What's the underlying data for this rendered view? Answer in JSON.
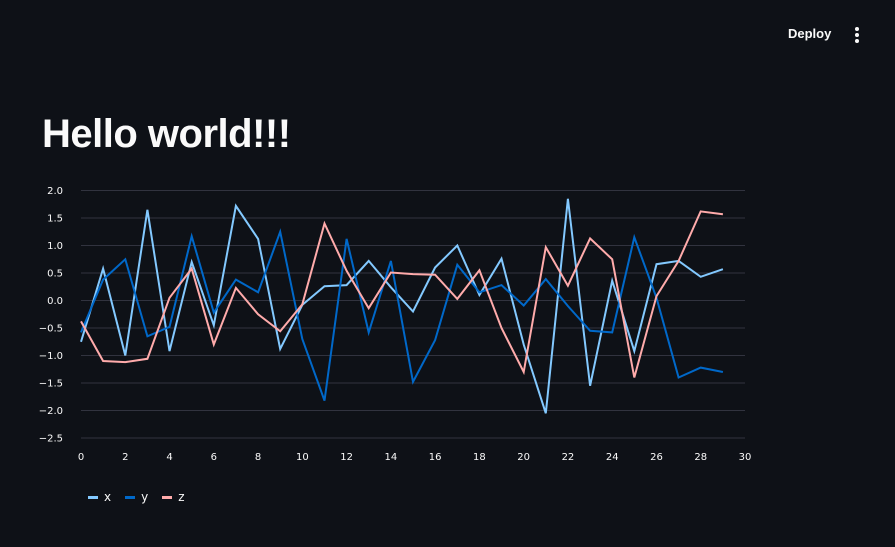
{
  "header": {
    "deploy_label": "Deploy",
    "menu_icon": "kebab-menu-icon"
  },
  "main": {
    "title": "Hello world!!!"
  },
  "colors": {
    "background": "#0e1117",
    "text": "#fafafa",
    "gridline": "#31333f",
    "series_x": "#83c9ff",
    "series_y": "#0068c9",
    "series_z": "#ffabab"
  },
  "chart_data": {
    "type": "line",
    "x": [
      0,
      1,
      2,
      3,
      4,
      5,
      6,
      7,
      8,
      9,
      10,
      11,
      12,
      13,
      14,
      15,
      16,
      17,
      18,
      19,
      20,
      21,
      22,
      23,
      24,
      25,
      26,
      27,
      28,
      29
    ],
    "xlim": [
      0,
      30
    ],
    "ylim": [
      -2.7,
      2.1
    ],
    "xticks": [
      0,
      2,
      4,
      6,
      8,
      10,
      12,
      14,
      16,
      18,
      20,
      22,
      24,
      26,
      28,
      30
    ],
    "yticks": [
      2.0,
      1.5,
      1.0,
      0.5,
      0.0,
      -0.5,
      -1.0,
      -1.5,
      -2.0,
      -2.5
    ],
    "ytick_labels": [
      "2.0",
      "1.5",
      "1.0",
      "0.5",
      "0.0",
      "−0.5",
      "−1.0",
      "−1.5",
      "−2.0",
      "−2.5"
    ],
    "grid": true,
    "legend_position": "bottom-left",
    "series": [
      {
        "name": "x",
        "color": "#83c9ff",
        "values": [
          -0.75,
          0.58,
          -1.0,
          1.65,
          -0.92,
          0.7,
          -0.45,
          1.72,
          1.12,
          -0.88,
          -0.08,
          0.26,
          0.28,
          0.72,
          0.24,
          -0.2,
          0.6,
          1.0,
          0.1,
          0.76,
          -0.8,
          -2.05,
          1.85,
          -1.55,
          0.36,
          -0.92,
          0.66,
          0.72,
          0.43,
          0.57
        ]
      },
      {
        "name": "y",
        "color": "#0068c9",
        "values": [
          -0.58,
          0.38,
          0.75,
          -0.65,
          -0.48,
          1.17,
          -0.22,
          0.38,
          0.15,
          1.25,
          -0.7,
          -1.82,
          1.12,
          -0.58,
          0.72,
          -1.48,
          -0.72,
          0.65,
          0.15,
          0.28,
          -0.09,
          0.39,
          -0.1,
          -0.55,
          -0.58,
          1.15,
          0.05,
          -1.4,
          -1.22,
          -1.3
        ]
      },
      {
        "name": "z",
        "color": "#ffabab",
        "values": [
          -0.38,
          -1.1,
          -1.12,
          -1.06,
          0.05,
          0.58,
          -0.8,
          0.23,
          -0.25,
          -0.56,
          -0.07,
          1.4,
          0.54,
          -0.14,
          0.51,
          0.48,
          0.47,
          0.03,
          0.55,
          -0.5,
          -1.3,
          0.97,
          0.27,
          1.13,
          0.75,
          -1.4,
          0.08,
          0.72,
          1.62,
          1.57
        ]
      }
    ]
  }
}
